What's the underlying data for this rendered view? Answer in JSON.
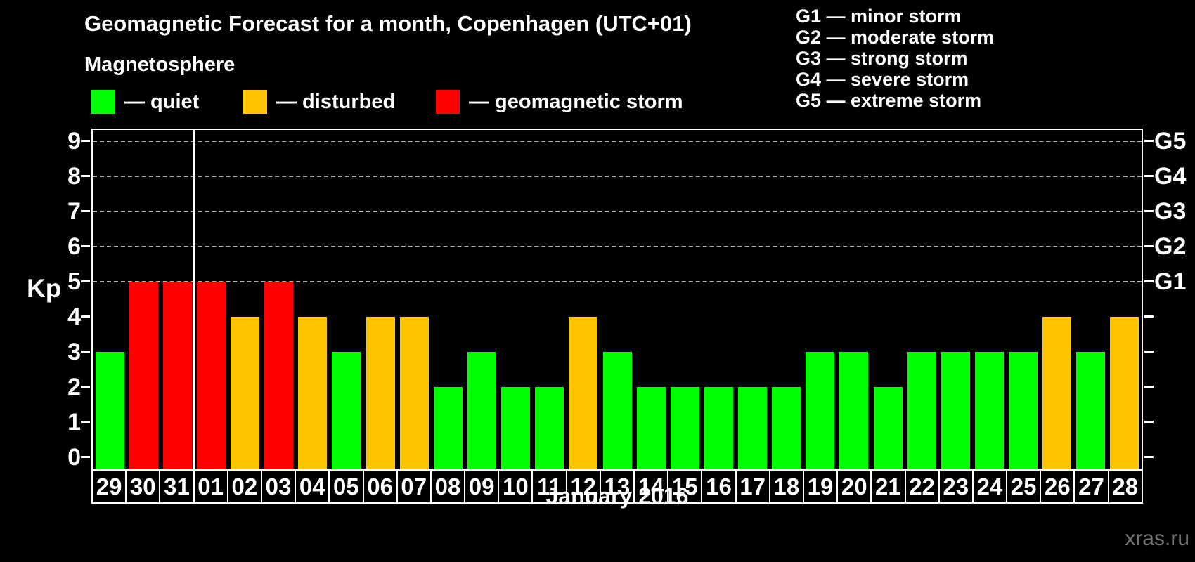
{
  "title": "Geomagnetic Forecast for a month, Copenhagen (UTC+01)",
  "subtitle": "Magnetosphere",
  "legend": {
    "items": [
      {
        "status": "quiet",
        "label": "— quiet",
        "color": "#00ff00"
      },
      {
        "status": "disturbed",
        "label": "— disturbed",
        "color": "#ffc400"
      },
      {
        "status": "storm",
        "label": "— geomagnetic storm",
        "color": "#ff0000"
      }
    ]
  },
  "g_scale": [
    {
      "label": "G1 — minor storm"
    },
    {
      "label": "G2 — moderate storm"
    },
    {
      "label": "G3 — strong storm"
    },
    {
      "label": "G4 — severe storm"
    },
    {
      "label": "G5 — extreme storm"
    }
  ],
  "chart_data": {
    "type": "bar",
    "title": "Geomagnetic Forecast for a month, Copenhagen (UTC+01)",
    "ylabel": "Kp",
    "xlabel": "January 2016",
    "ylim": [
      0,
      9
    ],
    "yticks": [
      0,
      1,
      2,
      3,
      4,
      5,
      6,
      7,
      8,
      9
    ],
    "grid": "dashed horizontal lines at Kp 5-9",
    "right_axis": [
      {
        "kp": 9,
        "label": "G5"
      },
      {
        "kp": 8,
        "label": "G4"
      },
      {
        "kp": 7,
        "label": "G3"
      },
      {
        "kp": 6,
        "label": "G2"
      },
      {
        "kp": 5,
        "label": "G1"
      }
    ],
    "categories": [
      "29",
      "30",
      "31",
      "01",
      "02",
      "03",
      "04",
      "05",
      "06",
      "07",
      "08",
      "09",
      "10",
      "11",
      "12",
      "13",
      "14",
      "15",
      "16",
      "17",
      "18",
      "19",
      "20",
      "21",
      "22",
      "23",
      "24",
      "25",
      "26",
      "27",
      "28"
    ],
    "values": [
      3,
      5,
      5,
      5,
      4,
      5,
      4,
      3,
      4,
      4,
      2,
      3,
      2,
      2,
      4,
      3,
      2,
      2,
      2,
      2,
      2,
      3,
      3,
      2,
      3,
      3,
      3,
      3,
      4,
      3,
      4
    ],
    "statuses": [
      "quiet",
      "storm",
      "storm",
      "storm",
      "disturbed",
      "storm",
      "disturbed",
      "quiet",
      "disturbed",
      "disturbed",
      "quiet",
      "quiet",
      "quiet",
      "quiet",
      "disturbed",
      "quiet",
      "quiet",
      "quiet",
      "quiet",
      "quiet",
      "quiet",
      "quiet",
      "quiet",
      "quiet",
      "quiet",
      "quiet",
      "quiet",
      "quiet",
      "disturbed",
      "quiet",
      "disturbed"
    ],
    "separator_after_index": 2
  },
  "footer": {
    "month_label": "January 2016",
    "watermark": "xras.ru"
  }
}
